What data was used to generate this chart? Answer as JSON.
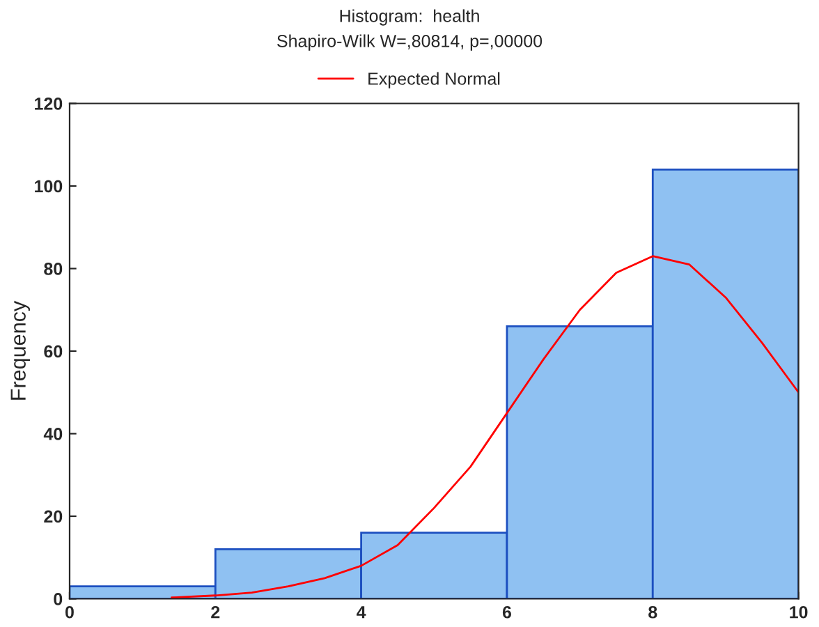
{
  "chart_data": {
    "type": "histogram",
    "title": "Histogram:  health",
    "subtitle": "Shapiro-Wilk W=,80814, p=,00000",
    "ylabel": "Frequency",
    "bins": [
      0,
      2,
      4,
      6,
      8,
      10
    ],
    "values": [
      3,
      12,
      16,
      66,
      104
    ],
    "color": "#8fc1f2",
    "series": [
      {
        "type": "line",
        "name": "Expected Normal",
        "color": "#ff0000",
        "x": [
          1.4,
          2,
          2.5,
          3,
          3.5,
          4,
          4.5,
          5,
          5.5,
          6,
          6.5,
          7,
          7.5,
          8,
          8.5,
          9,
          9.5,
          10
        ],
        "values": [
          0.3,
          0.8,
          1.5,
          3,
          5,
          8,
          13,
          22,
          32,
          45,
          58,
          70,
          79,
          83,
          81,
          73,
          62,
          50
        ]
      }
    ],
    "xlim": [
      0,
      10
    ],
    "xticks": [
      0,
      2,
      4,
      6,
      8,
      10
    ],
    "ylim": [
      0,
      120
    ],
    "yticks": [
      0,
      20,
      40,
      60,
      80,
      100,
      120
    ],
    "grid": false,
    "legend": "top"
  }
}
